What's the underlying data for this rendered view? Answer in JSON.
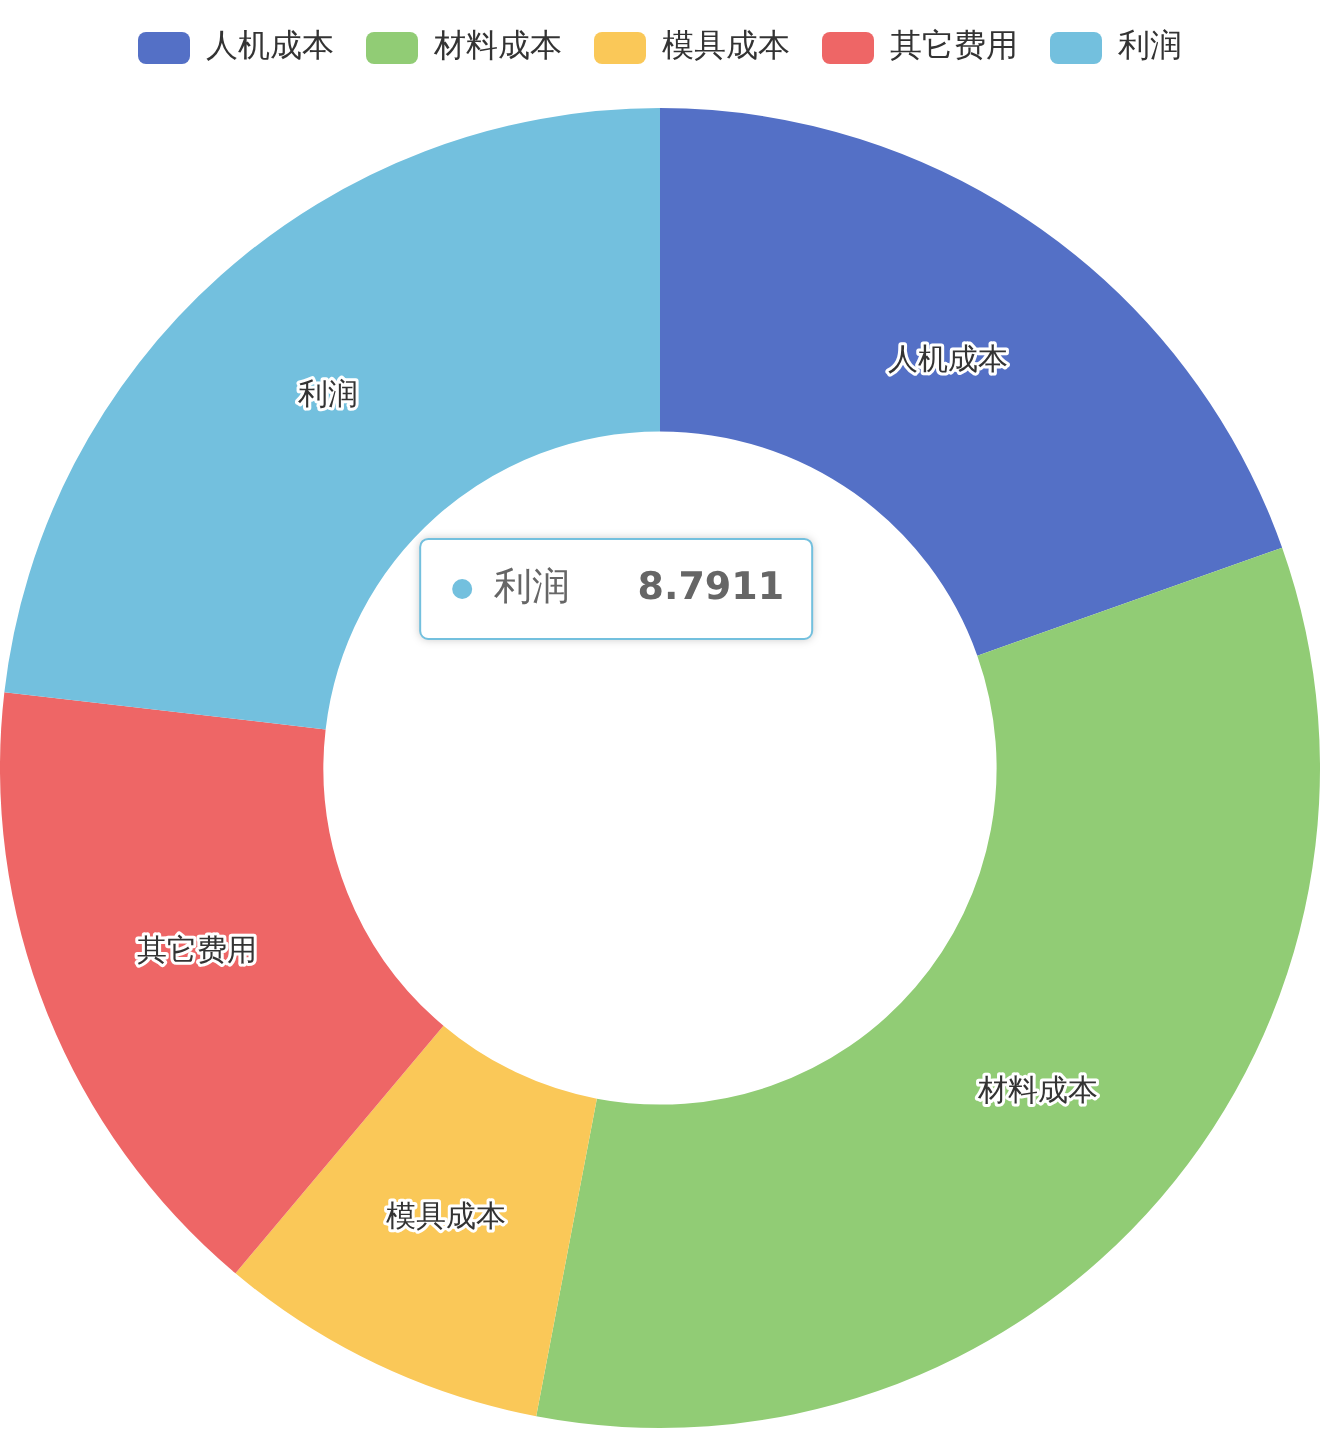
{
  "chart_data": {
    "type": "donut",
    "categories": [
      "人机成本",
      "材料成本",
      "模具成本",
      "其它费用",
      "利润"
    ],
    "values": [
      7.43,
      12.68,
      3.08,
      5.96,
      8.7911
    ],
    "colors": [
      "#5470c6",
      "#91cc75",
      "#fac858",
      "#ee6666",
      "#73c0de"
    ],
    "value_labels": [
      null,
      null,
      null,
      null,
      "8.7911"
    ],
    "legend": "top"
  }
}
